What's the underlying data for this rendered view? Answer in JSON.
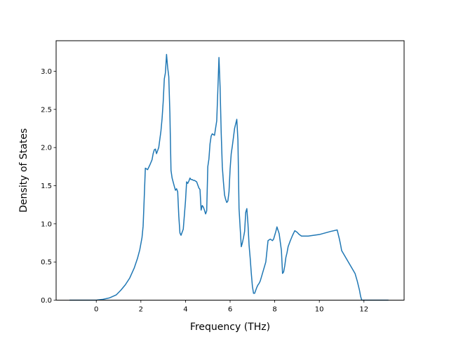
{
  "chart_data": {
    "type": "line",
    "title": "",
    "xlabel": "Frequency (THz)",
    "ylabel": "Density of States",
    "xlim": [
      -1.8,
      13.8
    ],
    "ylim": [
      0.0,
      3.4
    ],
    "xticks": [
      0,
      2,
      4,
      6,
      8,
      10,
      12
    ],
    "yticks": [
      0.0,
      0.5,
      1.0,
      1.5,
      2.0,
      2.5,
      3.0
    ],
    "xtick_labels": [
      "0",
      "2",
      "4",
      "6",
      "8",
      "10",
      "12"
    ],
    "ytick_labels": [
      "0.0",
      "0.5",
      "1.0",
      "1.5",
      "2.0",
      "2.5",
      "3.0"
    ],
    "grid": false,
    "line_color": "#1f77b4",
    "series": [
      {
        "x": [
          -1.2,
          0.0,
          0.3,
          0.6,
          0.9,
          1.1,
          1.3,
          1.5,
          1.7,
          1.85,
          1.95,
          2.05,
          2.1,
          2.13,
          2.2,
          2.3,
          2.4,
          2.5,
          2.55,
          2.6,
          2.65,
          2.7,
          2.8,
          2.9,
          2.95,
          3.0,
          3.05,
          3.1,
          3.15,
          3.2,
          3.25,
          3.3,
          3.35,
          3.4,
          3.5,
          3.55,
          3.6,
          3.65,
          3.7,
          3.75,
          3.8,
          3.9,
          4.0,
          4.05,
          4.1,
          4.15,
          4.2,
          4.25,
          4.3,
          4.35,
          4.4,
          4.5,
          4.6,
          4.65,
          4.7,
          4.75,
          4.8,
          4.85,
          4.9,
          4.95,
          5.0,
          5.05,
          5.1,
          5.15,
          5.2,
          5.3,
          5.4,
          5.45,
          5.5,
          5.55,
          5.6,
          5.65,
          5.7,
          5.75,
          5.8,
          5.85,
          5.9,
          5.95,
          6.0,
          6.05,
          6.1,
          6.2,
          6.3,
          6.35,
          6.4,
          6.45,
          6.5,
          6.55,
          6.6,
          6.65,
          6.7,
          6.75,
          6.8,
          6.85,
          6.9,
          6.95,
          7.0,
          7.05,
          7.1,
          7.15,
          7.2,
          7.25,
          7.3,
          7.35,
          7.4,
          7.5,
          7.6,
          7.7,
          7.8,
          7.9,
          7.95,
          8.0,
          8.05,
          8.1,
          8.2,
          8.3,
          8.35,
          8.4,
          8.45,
          8.5,
          8.55,
          8.6,
          8.7,
          8.8,
          8.9,
          9.0,
          9.1,
          9.2,
          9.3,
          9.5,
          10.0,
          10.5,
          10.8,
          10.9,
          10.95,
          11.0,
          11.2,
          11.4,
          11.6,
          11.7,
          11.8,
          11.85,
          11.9,
          12.0,
          13.1
        ],
        "y": [
          0.0,
          0.0,
          0.01,
          0.03,
          0.07,
          0.13,
          0.2,
          0.29,
          0.42,
          0.55,
          0.66,
          0.82,
          0.97,
          1.19,
          1.73,
          1.71,
          1.77,
          1.84,
          1.92,
          1.97,
          1.98,
          1.92,
          2.0,
          2.22,
          2.38,
          2.6,
          2.9,
          2.98,
          3.22,
          3.05,
          2.93,
          2.45,
          1.7,
          1.6,
          1.49,
          1.44,
          1.46,
          1.42,
          1.1,
          0.88,
          0.85,
          0.93,
          1.3,
          1.55,
          1.53,
          1.56,
          1.6,
          1.58,
          1.58,
          1.57,
          1.57,
          1.55,
          1.47,
          1.45,
          1.18,
          1.24,
          1.22,
          1.18,
          1.13,
          1.17,
          1.75,
          1.85,
          2.05,
          2.15,
          2.18,
          2.16,
          2.35,
          2.75,
          3.18,
          2.8,
          2.2,
          1.75,
          1.55,
          1.38,
          1.32,
          1.28,
          1.3,
          1.42,
          1.72,
          1.92,
          2.02,
          2.25,
          2.37,
          2.1,
          1.2,
          0.95,
          0.7,
          0.75,
          0.82,
          0.9,
          1.15,
          1.2,
          1.0,
          0.72,
          0.55,
          0.35,
          0.18,
          0.09,
          0.09,
          0.13,
          0.17,
          0.2,
          0.22,
          0.25,
          0.3,
          0.4,
          0.5,
          0.78,
          0.8,
          0.78,
          0.8,
          0.85,
          0.9,
          0.96,
          0.87,
          0.65,
          0.35,
          0.37,
          0.45,
          0.56,
          0.62,
          0.7,
          0.78,
          0.85,
          0.91,
          0.89,
          0.86,
          0.84,
          0.84,
          0.84,
          0.86,
          0.9,
          0.92,
          0.8,
          0.73,
          0.65,
          0.55,
          0.45,
          0.35,
          0.25,
          0.13,
          0.05,
          0.0,
          0.0,
          0.0
        ]
      }
    ]
  }
}
